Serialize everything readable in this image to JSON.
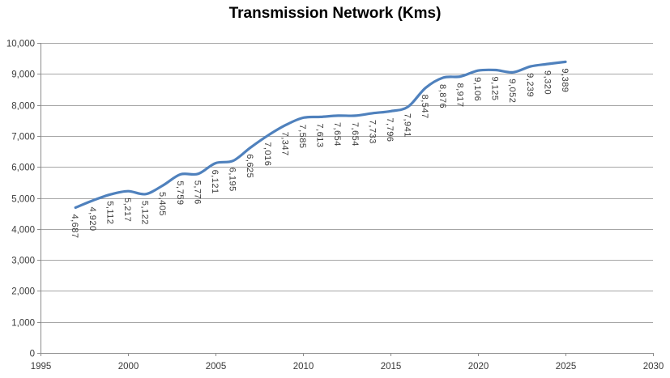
{
  "chart_data": {
    "type": "line",
    "title": "Transmission Network (Kms)",
    "xlabel": "",
    "ylabel": "",
    "xlim": [
      1995,
      2030
    ],
    "ylim": [
      0,
      10000
    ],
    "grid": "horizontal-major",
    "legend": "none",
    "smoothed": true,
    "x": [
      1997,
      1998,
      1999,
      2000,
      2001,
      2002,
      2003,
      2004,
      2005,
      2006,
      2007,
      2008,
      2009,
      2010,
      2011,
      2012,
      2013,
      2014,
      2015,
      2016,
      2017,
      2018,
      2019,
      2020,
      2021,
      2022,
      2023,
      2024,
      2025
    ],
    "values": [
      4687,
      4920,
      5112,
      5217,
      5122,
      5405,
      5759,
      5776,
      6121,
      6195,
      6625,
      7016,
      7347,
      7585,
      7613,
      7654,
      7654,
      7733,
      7796,
      7941,
      8547,
      8876,
      8917,
      9106,
      9125,
      9052,
      9239,
      9320,
      9389
    ],
    "point_labels": [
      "4,687",
      "4,920",
      "5,112",
      "5,217",
      "5,122",
      "5,405",
      "5,759",
      "5,776",
      "6,121",
      "6,195",
      "6,625",
      "7,016",
      "7,347",
      "7,585",
      "7,613",
      "7,654",
      "7,654",
      "7,733",
      "7,796",
      "7,941",
      "8,547",
      "8,876",
      "8,917",
      "9,106",
      "9,125",
      "9,052",
      "9,239",
      "9,320",
      "9,389"
    ],
    "x_ticks": [
      {
        "value": 1995,
        "label": "1995"
      },
      {
        "value": 2000,
        "label": "2000"
      },
      {
        "value": 2005,
        "label": "2005"
      },
      {
        "value": 2010,
        "label": "2010"
      },
      {
        "value": 2015,
        "label": "2015"
      },
      {
        "value": 2020,
        "label": "2020"
      },
      {
        "value": 2025,
        "label": "2025"
      },
      {
        "value": 2030,
        "label": "2030"
      }
    ],
    "y_ticks": [
      {
        "value": 0,
        "label": "0"
      },
      {
        "value": 1000,
        "label": "1,000"
      },
      {
        "value": 2000,
        "label": "2,000"
      },
      {
        "value": 3000,
        "label": "3,000"
      },
      {
        "value": 4000,
        "label": "4,000"
      },
      {
        "value": 5000,
        "label": "5,000"
      },
      {
        "value": 6000,
        "label": "6,000"
      },
      {
        "value": 7000,
        "label": "7,000"
      },
      {
        "value": 8000,
        "label": "8,000"
      },
      {
        "value": 9000,
        "label": "9,000"
      },
      {
        "value": 10000,
        "label": "10,000"
      }
    ],
    "colors": {
      "line": "#4F81BD",
      "grid": "#A6A6A6",
      "axis": "#8C8C8C",
      "tick_label": "#3A3A3A",
      "data_label": "#3A3A3A",
      "title": "#000000",
      "background": "#FFFFFF"
    }
  }
}
